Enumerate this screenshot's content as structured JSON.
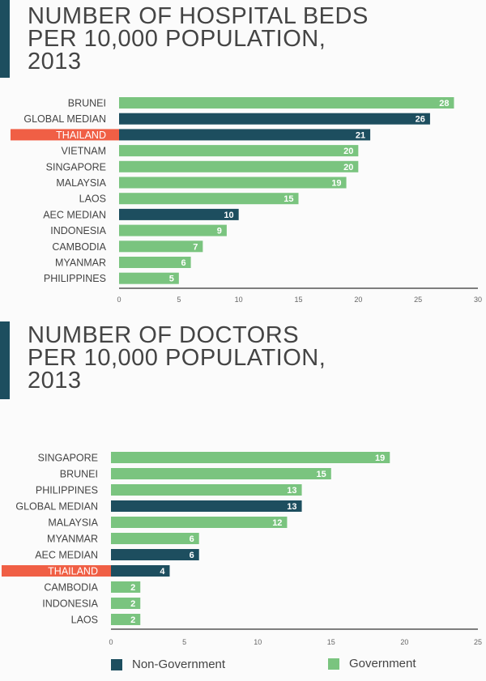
{
  "colors": {
    "government": "#7ac47f",
    "non_government": "#1d4e5f",
    "highlight": "#f05f45"
  },
  "legend": {
    "non_government": "Non-Government",
    "government": "Government"
  },
  "chart_data": [
    {
      "type": "bar",
      "orientation": "horizontal",
      "title": "NUMBER OF HOSPITAL BEDS\nPER 10,000 POPULATION,\n2013",
      "categories": [
        "BRUNEI",
        "GLOBAL MEDIAN",
        "THAILAND",
        "VIETNAM",
        "SINGAPORE",
        "MALAYSIA",
        "LAOS",
        "AEC MEDIAN",
        "INDONESIA",
        "CAMBODIA",
        "MYANMAR",
        "PHILIPPINES"
      ],
      "values": [
        28,
        26,
        21,
        20,
        20,
        19,
        15,
        10,
        9,
        7,
        6,
        5
      ],
      "series_type": [
        "government",
        "non_government",
        "non_government",
        "government",
        "government",
        "government",
        "government",
        "non_government",
        "government",
        "government",
        "government",
        "government"
      ],
      "highlight": "THAILAND",
      "xlim": [
        0,
        30
      ],
      "ticks": [
        0,
        5,
        10,
        15,
        20,
        25,
        30
      ]
    },
    {
      "type": "bar",
      "orientation": "horizontal",
      "title": "NUMBER OF DOCTORS\nPER 10,000 POPULATION,\n2013",
      "categories": [
        "SINGAPORE",
        "BRUNEI",
        "PHILIPPINES",
        "GLOBAL MEDIAN",
        "MALAYSIA",
        "MYANMAR",
        "AEC MEDIAN",
        "THAILAND",
        "CAMBODIA",
        "INDONESIA",
        "LAOS"
      ],
      "values": [
        19,
        15,
        13,
        13,
        12,
        6,
        6,
        4,
        2,
        2,
        2
      ],
      "series_type": [
        "government",
        "government",
        "government",
        "non_government",
        "government",
        "government",
        "non_government",
        "non_government",
        "government",
        "government",
        "government"
      ],
      "highlight": "THAILAND",
      "xlim": [
        0,
        25
      ],
      "ticks": [
        0,
        5,
        10,
        15,
        20,
        25
      ]
    }
  ]
}
